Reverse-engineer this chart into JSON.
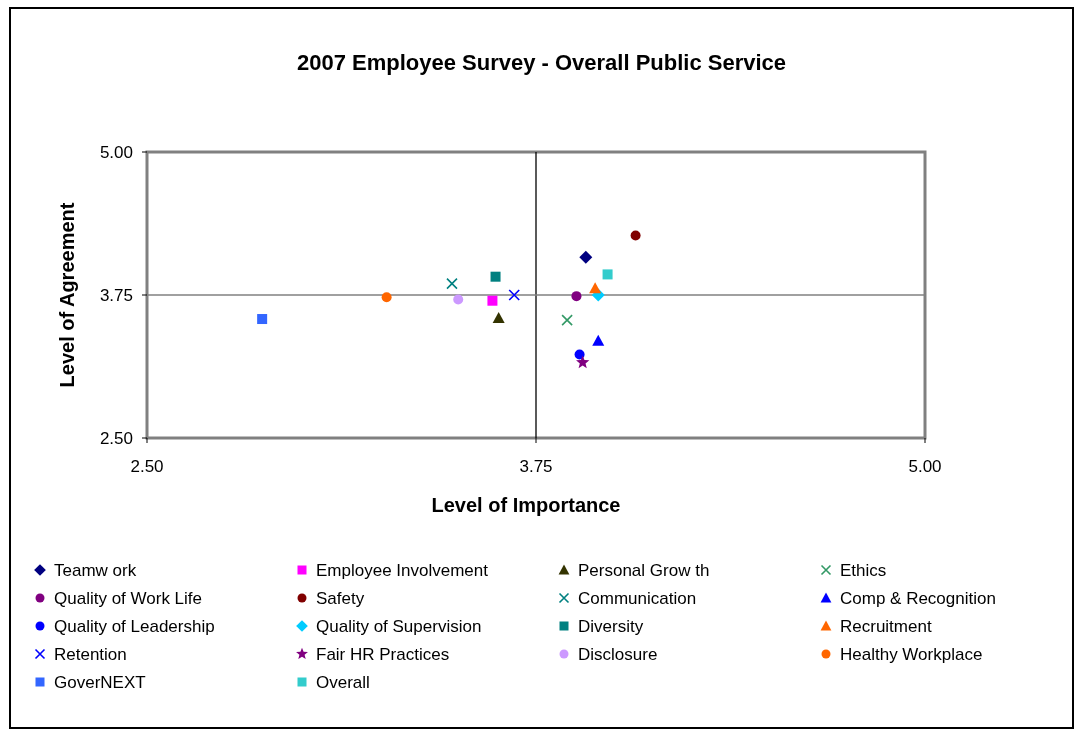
{
  "chart_data": {
    "type": "scatter",
    "title": "2007 Employee Survey - Overall Public Service",
    "xlabel": "Level of Importance",
    "ylabel": "Level of Agreement",
    "xlim": [
      2.5,
      5
    ],
    "ylim": [
      2.5,
      5
    ],
    "xticks": [
      {
        "value": 2.5,
        "label": "2.50"
      },
      {
        "value": 3.75,
        "label": "3.75"
      },
      {
        "value": 5,
        "label": "5.00"
      }
    ],
    "yticks": [
      {
        "value": 2.5,
        "label": "2.50"
      },
      {
        "value": 3.75,
        "label": "3.75"
      },
      {
        "value": 5,
        "label": "5.00"
      }
    ],
    "grid": false,
    "legend": "bottom",
    "ref_lines": [
      {
        "axis": "x",
        "value": 3.75,
        "color": "#000000"
      },
      {
        "axis": "y",
        "value": 3.75,
        "color": "#808080"
      }
    ],
    "series": [
      {
        "name": "Teamw ork",
        "color": "#000080",
        "marker": "diamond",
        "x": [
          3.91
        ],
        "values": [
          4.08
        ]
      },
      {
        "name": "Employee Involvement",
        "color": "#ff00ff",
        "marker": "square",
        "x": [
          3.61
        ],
        "values": [
          3.7
        ]
      },
      {
        "name": "Personal Grow th",
        "color": "#333300",
        "marker": "triangle",
        "x": [
          3.63
        ],
        "values": [
          3.55
        ]
      },
      {
        "name": "Ethics",
        "color": "#339966",
        "marker": "cross",
        "x": [
          3.85
        ],
        "values": [
          3.53
        ]
      },
      {
        "name": "Quality of Work Life",
        "color": "#800080",
        "marker": "circle",
        "x": [
          3.88
        ],
        "values": [
          3.74
        ]
      },
      {
        "name": "Safety",
        "color": "#800000",
        "marker": "circle",
        "x": [
          4.07
        ],
        "values": [
          4.27
        ]
      },
      {
        "name": "Communication",
        "color": "#008080",
        "marker": "cross",
        "x": [
          3.48
        ],
        "values": [
          3.85
        ]
      },
      {
        "name": "Comp & Recognition",
        "color": "#0000ff",
        "marker": "triangle",
        "x": [
          3.95
        ],
        "values": [
          3.35
        ]
      },
      {
        "name": "Quality of Leadership",
        "color": "#0000ff",
        "marker": "circle",
        "x": [
          3.89
        ],
        "values": [
          3.23
        ]
      },
      {
        "name": "Quality of Supervision",
        "color": "#00ccff",
        "marker": "diamond",
        "x": [
          3.95
        ],
        "values": [
          3.75
        ]
      },
      {
        "name": "Diversity",
        "color": "#008080",
        "marker": "square",
        "x": [
          3.62
        ],
        "values": [
          3.91
        ]
      },
      {
        "name": "Recruitment",
        "color": "#ff6600",
        "marker": "triangle",
        "x": [
          3.94
        ],
        "values": [
          3.81
        ]
      },
      {
        "name": "Retention",
        "color": "#0000ff",
        "marker": "cross",
        "x": [
          3.68
        ],
        "values": [
          3.75
        ]
      },
      {
        "name": "Fair HR Practices",
        "color": "#800080",
        "marker": "star",
        "x": [
          3.9
        ],
        "values": [
          3.16
        ]
      },
      {
        "name": "Disclosure",
        "color": "#cc99ff",
        "marker": "circle",
        "x": [
          3.5
        ],
        "values": [
          3.71
        ]
      },
      {
        "name": "Healthy Workplace",
        "color": "#ff6600",
        "marker": "circle",
        "x": [
          3.27
        ],
        "values": [
          3.73
        ]
      },
      {
        "name": "GoverNEXT",
        "color": "#3366ff",
        "marker": "square",
        "x": [
          2.87
        ],
        "values": [
          3.54
        ]
      },
      {
        "name": "Overall",
        "color": "#33cccc",
        "marker": "square",
        "x": [
          3.98
        ],
        "values": [
          3.93
        ]
      }
    ]
  }
}
